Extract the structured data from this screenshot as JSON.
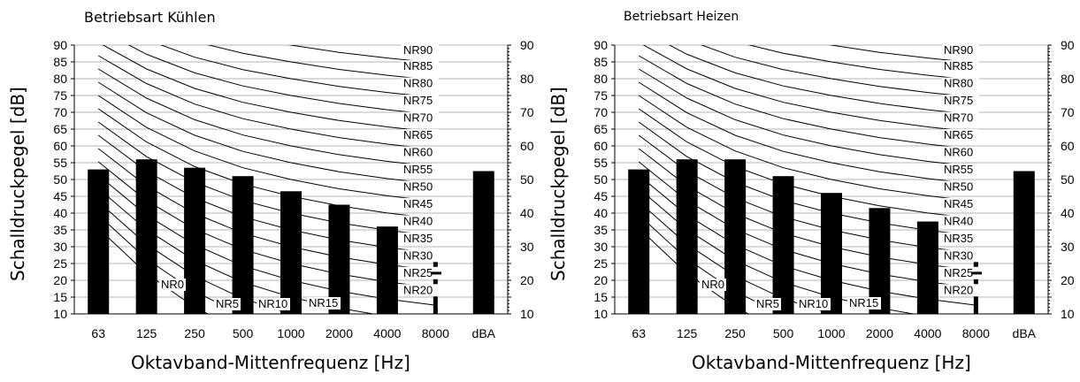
{
  "chart_data": [
    {
      "type": "bar",
      "title": "Betriebsart Kühlen",
      "xlabel": "Oktavband-Mittenfrequenz [Hz]",
      "ylabel": "Schalldruckpegel [dB]",
      "ylim": [
        10,
        90
      ],
      "yticks": [
        10,
        15,
        20,
        25,
        30,
        35,
        40,
        45,
        50,
        55,
        60,
        65,
        70,
        75,
        80,
        85,
        90
      ],
      "categories": [
        "63",
        "125",
        "250",
        "500",
        "1000",
        "2000",
        "4000",
        "8000",
        "dBA"
      ],
      "values": [
        53,
        56,
        53.5,
        51,
        46.5,
        42.5,
        36,
        28,
        52.5
      ],
      "grid": true,
      "nr_curves": [
        "NR0",
        "NR5",
        "NR10",
        "NR15",
        "NR20",
        "NR25",
        "NR30",
        "NR35",
        "NR40",
        "NR45",
        "NR50",
        "NR55",
        "NR60",
        "NR65",
        "NR70",
        "NR75",
        "NR80",
        "NR85",
        "NR90"
      ]
    },
    {
      "type": "bar",
      "title": "Betriebsart Heizen",
      "xlabel": "Oktavband-Mittenfrequenz [Hz]",
      "ylabel": "Schalldruckpegel [dB]",
      "ylim": [
        10,
        90
      ],
      "yticks": [
        10,
        15,
        20,
        25,
        30,
        35,
        40,
        45,
        50,
        55,
        60,
        65,
        70,
        75,
        80,
        85,
        90
      ],
      "categories": [
        "63",
        "125",
        "250",
        "500",
        "1000",
        "2000",
        "4000",
        "8000",
        "dBA"
      ],
      "values": [
        53,
        56,
        56,
        51,
        46,
        41.5,
        37.5,
        27.5,
        52.5
      ],
      "grid": true,
      "nr_curves": [
        "NR0",
        "NR5",
        "NR10",
        "NR15",
        "NR20",
        "NR25",
        "NR30",
        "NR35",
        "NR40",
        "NR45",
        "NR50",
        "NR55",
        "NR60",
        "NR65",
        "NR70",
        "NR75",
        "NR80",
        "NR85",
        "NR90"
      ]
    }
  ]
}
